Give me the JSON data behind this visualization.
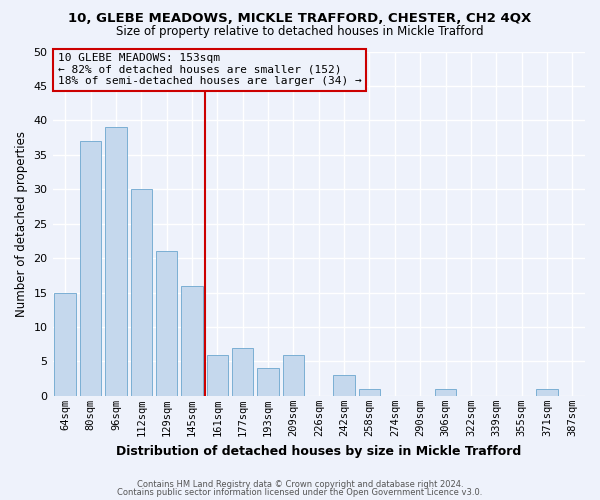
{
  "title1": "10, GLEBE MEADOWS, MICKLE TRAFFORD, CHESTER, CH2 4QX",
  "title2": "Size of property relative to detached houses in Mickle Trafford",
  "xlabel": "Distribution of detached houses by size in Mickle Trafford",
  "ylabel": "Number of detached properties",
  "categories": [
    "64sqm",
    "80sqm",
    "96sqm",
    "112sqm",
    "129sqm",
    "145sqm",
    "161sqm",
    "177sqm",
    "193sqm",
    "209sqm",
    "226sqm",
    "242sqm",
    "258sqm",
    "274sqm",
    "290sqm",
    "306sqm",
    "322sqm",
    "339sqm",
    "355sqm",
    "371sqm",
    "387sqm"
  ],
  "values": [
    15,
    37,
    39,
    30,
    21,
    16,
    6,
    7,
    4,
    6,
    0,
    3,
    1,
    0,
    0,
    1,
    0,
    0,
    0,
    1,
    0
  ],
  "bar_color": "#c5d8ed",
  "bar_edge_color": "#7bafd4",
  "reference_line_index": 6,
  "reference_line_color": "#cc0000",
  "annotation_line1": "10 GLEBE MEADOWS: 153sqm",
  "annotation_line2": "← 82% of detached houses are smaller (152)",
  "annotation_line3": "18% of semi-detached houses are larger (34) →",
  "annotation_box_edge_color": "#cc0000",
  "ylim": [
    0,
    50
  ],
  "yticks": [
    0,
    5,
    10,
    15,
    20,
    25,
    30,
    35,
    40,
    45,
    50
  ],
  "background_color": "#eef2fb",
  "grid_color": "#ffffff",
  "footnote1": "Contains HM Land Registry data © Crown copyright and database right 2024.",
  "footnote2": "Contains public sector information licensed under the Open Government Licence v3.0."
}
